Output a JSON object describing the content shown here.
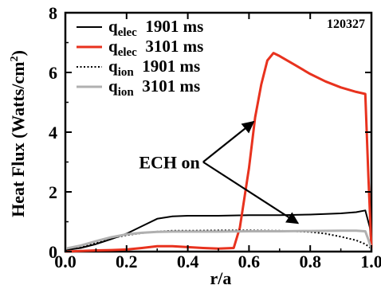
{
  "chart_data": {
    "type": "line",
    "ylabel": "Heat Flux (Watts/cm",
    "ylabel_sup": "2",
    "ylabel_close": ")",
    "xlabel": "r/a",
    "shot_label": "120327",
    "xlim": [
      0.0,
      1.0
    ],
    "ylim": [
      0,
      8
    ],
    "x_ticks": [
      {
        "value": 0.0,
        "label": "0.0"
      },
      {
        "value": 0.2,
        "label": "0.2"
      },
      {
        "value": 0.4,
        "label": "0.4"
      },
      {
        "value": 0.6,
        "label": "0.6"
      },
      {
        "value": 0.8,
        "label": "0.8"
      },
      {
        "value": 1.0,
        "label": "1.0"
      }
    ],
    "y_ticks": [
      {
        "value": 0,
        "label": "0"
      },
      {
        "value": 2,
        "label": "2"
      },
      {
        "value": 4,
        "label": "4"
      },
      {
        "value": 6,
        "label": "6"
      },
      {
        "value": 8,
        "label": "8"
      }
    ],
    "legend_position": "top-left",
    "series": [
      {
        "name_main": "q",
        "name_sub": "elec",
        "name_time": "1901 ms",
        "color": "#000000",
        "style": "solid",
        "x": [
          0.0,
          0.05,
          0.1,
          0.15,
          0.2,
          0.25,
          0.3,
          0.35,
          0.4,
          0.5,
          0.6,
          0.7,
          0.8,
          0.9,
          0.95,
          0.98,
          0.995,
          1.0
        ],
        "y": [
          0.05,
          0.12,
          0.25,
          0.42,
          0.6,
          0.85,
          1.1,
          1.18,
          1.2,
          1.2,
          1.22,
          1.22,
          1.24,
          1.28,
          1.32,
          1.38,
          0.8,
          0.1
        ]
      },
      {
        "name_main": "q",
        "name_sub": "elec",
        "name_time": "3101 ms",
        "color": "#e8321e",
        "style": "solid",
        "x": [
          0.0,
          0.05,
          0.1,
          0.15,
          0.2,
          0.25,
          0.3,
          0.35,
          0.4,
          0.45,
          0.5,
          0.55,
          0.57,
          0.6,
          0.62,
          0.64,
          0.66,
          0.68,
          0.7,
          0.75,
          0.8,
          0.85,
          0.9,
          0.95,
          0.98,
          0.99,
          1.0
        ],
        "y": [
          0.0,
          0.02,
          0.04,
          0.05,
          0.07,
          0.12,
          0.18,
          0.18,
          0.15,
          0.12,
          0.1,
          0.12,
          0.8,
          2.8,
          4.5,
          5.6,
          6.4,
          6.65,
          6.55,
          6.25,
          5.95,
          5.7,
          5.5,
          5.35,
          5.28,
          2.5,
          0.1
        ]
      },
      {
        "name_main": "q",
        "name_sub": "ion",
        "name_time": "1901 ms",
        "color": "#000000",
        "style": "dotted",
        "x": [
          0.0,
          0.05,
          0.1,
          0.15,
          0.2,
          0.25,
          0.3,
          0.35,
          0.4,
          0.5,
          0.6,
          0.7,
          0.8,
          0.85,
          0.9,
          0.95,
          0.98,
          1.0
        ],
        "y": [
          0.05,
          0.15,
          0.3,
          0.45,
          0.55,
          0.62,
          0.67,
          0.7,
          0.7,
          0.71,
          0.71,
          0.7,
          0.66,
          0.6,
          0.5,
          0.38,
          0.25,
          0.1
        ]
      },
      {
        "name_main": "q",
        "name_sub": "ion",
        "name_time": "3101 ms",
        "color": "#b0b0b0",
        "style": "solid",
        "x": [
          0.0,
          0.05,
          0.1,
          0.15,
          0.2,
          0.25,
          0.3,
          0.35,
          0.4,
          0.5,
          0.6,
          0.7,
          0.8,
          0.9,
          0.95,
          0.98,
          0.99,
          1.0
        ],
        "y": [
          0.1,
          0.2,
          0.35,
          0.48,
          0.58,
          0.63,
          0.66,
          0.67,
          0.67,
          0.67,
          0.68,
          0.68,
          0.69,
          0.7,
          0.7,
          0.68,
          0.4,
          0.1
        ]
      }
    ],
    "annotation": {
      "text": "ECH on",
      "anchor": {
        "x": 0.34,
        "y": 3.0
      },
      "arrows": [
        {
          "from": {
            "x": 0.45,
            "y": 3.0
          },
          "to": {
            "x": 0.615,
            "y": 4.35
          }
        },
        {
          "from": {
            "x": 0.45,
            "y": 3.0
          },
          "to": {
            "x": 0.76,
            "y": 0.95
          }
        }
      ]
    }
  }
}
